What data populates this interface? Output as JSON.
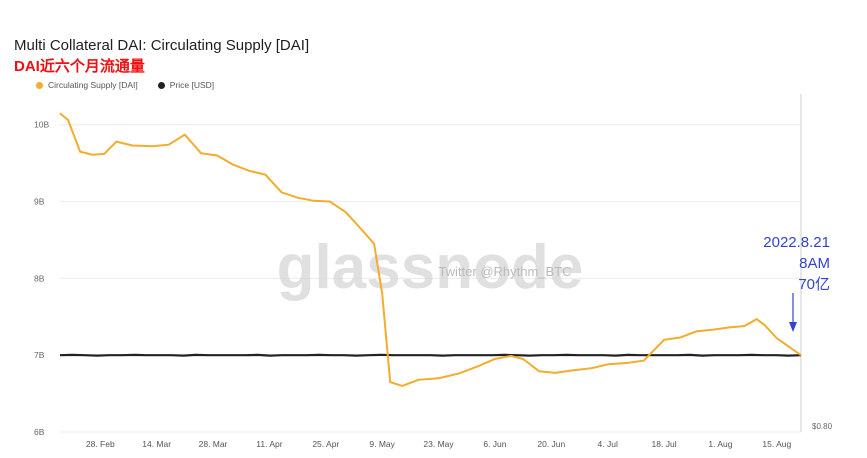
{
  "title": "Multi Collateral DAI: Circulating Supply [DAI]",
  "subtitle": "DAI近六个月流通量",
  "watermark": "glassnode",
  "watermark_small": "Twitter @Rhythm_BTC",
  "annotation": {
    "lines": [
      "2022.8.21",
      "8AM",
      "70亿"
    ],
    "color": "#3344cc"
  },
  "colors": {
    "supply": "#f2ac2e",
    "price": "#222222",
    "grid": "#ececec"
  },
  "chart_data": {
    "type": "line",
    "title": "Multi Collateral DAI: Circulating Supply [DAI]",
    "x_ticks": [
      "28. Feb",
      "14. Mar",
      "28. Mar",
      "11. Apr",
      "25. Apr",
      "9. May",
      "23. May",
      "6. Jun",
      "20. Jun",
      "4. Jul",
      "18. Jul",
      "1. Aug",
      "15. Aug"
    ],
    "y_ticks": [
      "10B",
      "9B",
      "8B",
      "7B",
      "6B"
    ],
    "y_right_ticks": [
      "$0.80"
    ],
    "ylim": [
      6000000000,
      10400000000
    ],
    "xlim": [
      "2022-02-18",
      "2022-08-21"
    ],
    "grid": true,
    "legend": "top-left",
    "series": [
      {
        "name": "Circulating Supply [DAI]",
        "color": "#f2ac2e",
        "points": [
          [
            "2022-02-18",
            10150000000
          ],
          [
            "2022-02-20",
            10060000000
          ],
          [
            "2022-02-23",
            9650000000
          ],
          [
            "2022-02-26",
            9610000000
          ],
          [
            "2022-03-01",
            9620000000
          ],
          [
            "2022-03-04",
            9780000000
          ],
          [
            "2022-03-08",
            9730000000
          ],
          [
            "2022-03-13",
            9720000000
          ],
          [
            "2022-03-17",
            9740000000
          ],
          [
            "2022-03-21",
            9870000000
          ],
          [
            "2022-03-25",
            9630000000
          ],
          [
            "2022-03-29",
            9600000000
          ],
          [
            "2022-04-02",
            9480000000
          ],
          [
            "2022-04-06",
            9400000000
          ],
          [
            "2022-04-10",
            9350000000
          ],
          [
            "2022-04-14",
            9120000000
          ],
          [
            "2022-04-18",
            9050000000
          ],
          [
            "2022-04-22",
            9010000000
          ],
          [
            "2022-04-26",
            9000000000
          ],
          [
            "2022-04-30",
            8860000000
          ],
          [
            "2022-05-04",
            8630000000
          ],
          [
            "2022-05-07",
            8450000000
          ],
          [
            "2022-05-09",
            7800000000
          ],
          [
            "2022-05-11",
            6650000000
          ],
          [
            "2022-05-14",
            6600000000
          ],
          [
            "2022-05-18",
            6680000000
          ],
          [
            "2022-05-23",
            6700000000
          ],
          [
            "2022-05-28",
            6760000000
          ],
          [
            "2022-06-02",
            6860000000
          ],
          [
            "2022-06-06",
            6950000000
          ],
          [
            "2022-06-10",
            6990000000
          ],
          [
            "2022-06-13",
            6950000000
          ],
          [
            "2022-06-17",
            6790000000
          ],
          [
            "2022-06-21",
            6770000000
          ],
          [
            "2022-06-25",
            6800000000
          ],
          [
            "2022-06-30",
            6830000000
          ],
          [
            "2022-07-04",
            6880000000
          ],
          [
            "2022-07-09",
            6900000000
          ],
          [
            "2022-07-13",
            6930000000
          ],
          [
            "2022-07-18",
            7200000000
          ],
          [
            "2022-07-22",
            7230000000
          ],
          [
            "2022-07-26",
            7310000000
          ],
          [
            "2022-07-30",
            7330000000
          ],
          [
            "2022-08-03",
            7360000000
          ],
          [
            "2022-08-07",
            7380000000
          ],
          [
            "2022-08-10",
            7470000000
          ],
          [
            "2022-08-12",
            7390000000
          ],
          [
            "2022-08-15",
            7220000000
          ],
          [
            "2022-08-18",
            7110000000
          ],
          [
            "2022-08-21",
            7000000000
          ]
        ]
      },
      {
        "name": "Price [USD]",
        "color": "#222222",
        "value": 1.0,
        "drawn_at_supply_level": 7000000000
      }
    ]
  }
}
